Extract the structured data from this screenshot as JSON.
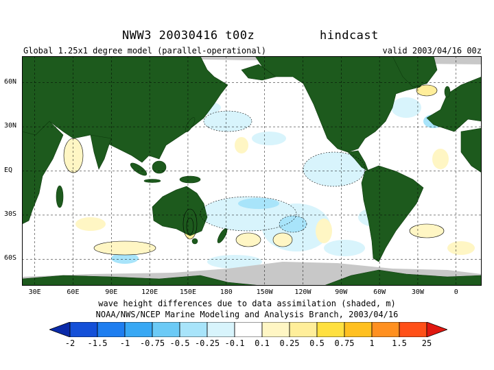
{
  "header": {
    "title": "NWW3 20030416 t00z",
    "title_right": "hindcast",
    "subtitle_left": "Global 1.25x1 degree model (parallel-operational)",
    "subtitle_right": "valid 2003/04/16 00z"
  },
  "map": {
    "projection": "equirectangular",
    "lon_range": [
      20,
      380
    ],
    "lat_range": [
      -78,
      78
    ],
    "land_color": "#1d5a1d",
    "ice_color": "#c8c8c8",
    "ocean_color": "#ffffff",
    "lat_labels": [
      {
        "text": "60N",
        "lat": 60
      },
      {
        "text": "30N",
        "lat": 30
      },
      {
        "text": "EQ",
        "lat": 0
      },
      {
        "text": "30S",
        "lat": -30
      },
      {
        "text": "60S",
        "lat": -60
      }
    ],
    "lon_labels": [
      {
        "text": "30E",
        "lon": 30
      },
      {
        "text": "60E",
        "lon": 60
      },
      {
        "text": "90E",
        "lon": 90
      },
      {
        "text": "120E",
        "lon": 120
      },
      {
        "text": "150E",
        "lon": 150
      },
      {
        "text": "180",
        "lon": 180
      },
      {
        "text": "150W",
        "lon": 210
      },
      {
        "text": "120W",
        "lon": 240
      },
      {
        "text": "90W",
        "lon": 270
      },
      {
        "text": "60W",
        "lon": 300
      },
      {
        "text": "30W",
        "lon": 330
      },
      {
        "text": "0",
        "lon": 360
      }
    ]
  },
  "captions": {
    "line1": "wave height differences due to data assimilation (shaded, m)",
    "line2": "NOAA/NWS/NCEP Marine Modeling and Analysis Branch, 2003/04/16"
  },
  "colorbar": {
    "labels": [
      "-2",
      "-1.5",
      "-1",
      "-0.75",
      "-0.5",
      "-0.25",
      "-0.1",
      "0.1",
      "0.25",
      "0.5",
      "0.75",
      "1",
      "1.5",
      "25"
    ],
    "colors": [
      "#0a2aa8",
      "#1450d8",
      "#1e7ef0",
      "#38a8f4",
      "#6ccaf6",
      "#a8e4fa",
      "#d8f4fc",
      "#ffffff",
      "#fff6c4",
      "#ffee9a",
      "#ffe040",
      "#ffc020",
      "#ff9020",
      "#ff5018",
      "#e01810"
    ]
  }
}
